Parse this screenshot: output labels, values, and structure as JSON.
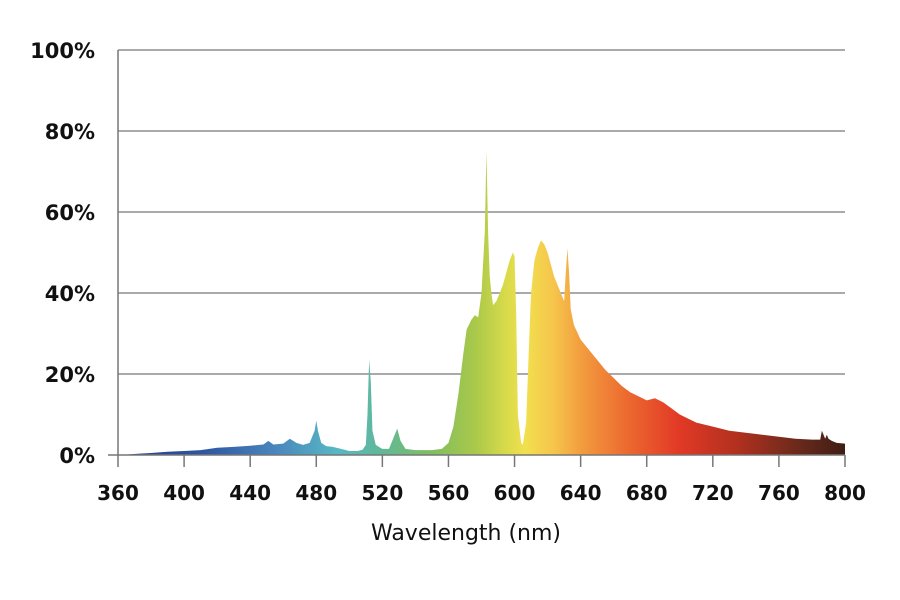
{
  "chart_data": {
    "type": "area",
    "title": "",
    "xlabel": "Wavelength (nm)",
    "ylabel": "",
    "xlim": [
      360,
      800
    ],
    "ylim": [
      0,
      100
    ],
    "grid": true,
    "x_ticks": [
      "360",
      "400",
      "440",
      "480",
      "520",
      "560",
      "600",
      "640",
      "680",
      "720",
      "760",
      "800"
    ],
    "y_ticks": [
      "0%",
      "20%",
      "40%",
      "60%",
      "80%",
      "100%"
    ],
    "fill": "spectral gradient by wavelength (blue → cyan → green → yellow → orange → red → dark brown)",
    "series": [
      {
        "x": [
          360,
          372,
          380,
          390,
          400,
          410,
          420,
          430,
          440,
          448,
          451,
          454,
          460,
          464,
          468,
          472,
          476,
          479,
          480,
          481,
          483,
          486,
          490,
          495,
          500,
          505,
          508,
          510,
          511,
          512,
          513,
          514,
          516,
          520,
          524,
          527,
          529,
          531,
          534,
          540,
          550,
          556,
          560,
          563,
          566,
          569,
          571,
          574,
          576,
          578,
          580,
          582,
          583,
          584,
          585,
          586,
          587,
          589,
          591,
          593,
          595,
          597,
          599,
          600,
          601,
          602,
          604,
          605,
          607,
          609,
          610,
          612,
          614,
          616,
          618,
          620,
          622,
          624,
          626,
          628,
          630,
          631,
          632,
          633,
          634,
          636,
          640,
          645,
          650,
          655,
          660,
          665,
          670,
          675,
          680,
          685,
          690,
          695,
          700,
          710,
          720,
          730,
          740,
          750,
          760,
          770,
          780,
          785,
          786,
          787,
          788,
          789,
          790,
          792,
          795,
          800
        ],
        "y": [
          0,
          0.3,
          0.5,
          0.8,
          1.0,
          1.2,
          1.8,
          2.0,
          2.3,
          2.6,
          3.5,
          2.6,
          2.8,
          4.0,
          3.0,
          2.5,
          3.0,
          6.0,
          8.5,
          6.0,
          3.0,
          2.2,
          2.0,
          1.5,
          1.0,
          1.0,
          1.3,
          2.5,
          10.0,
          23.5,
          18.0,
          6.0,
          2.5,
          1.5,
          1.5,
          4.5,
          6.5,
          3.5,
          1.5,
          1.2,
          1.2,
          1.5,
          3.0,
          7.0,
          15.0,
          25.0,
          31.0,
          33.5,
          34.5,
          34.0,
          40.0,
          55.0,
          75.0,
          55.0,
          44.0,
          40.0,
          37.0,
          38.0,
          40.0,
          42.0,
          45.0,
          48.0,
          50.0,
          49.0,
          35.0,
          10.0,
          3.0,
          2.5,
          8.0,
          30.0,
          40.0,
          48.0,
          51.0,
          53.0,
          52.0,
          50.0,
          47.0,
          44.0,
          42.0,
          40.0,
          38.0,
          45.0,
          51.0,
          45.0,
          36.0,
          32.0,
          28.5,
          26.0,
          23.5,
          21.0,
          19.0,
          17.0,
          15.5,
          14.5,
          13.5,
          14.0,
          13.0,
          11.5,
          10.0,
          8.0,
          7.0,
          6.0,
          5.5,
          5.0,
          4.5,
          4.0,
          3.8,
          3.8,
          6.0,
          5.0,
          4.0,
          5.0,
          4.0,
          3.5,
          3.0,
          2.8
        ]
      }
    ]
  }
}
